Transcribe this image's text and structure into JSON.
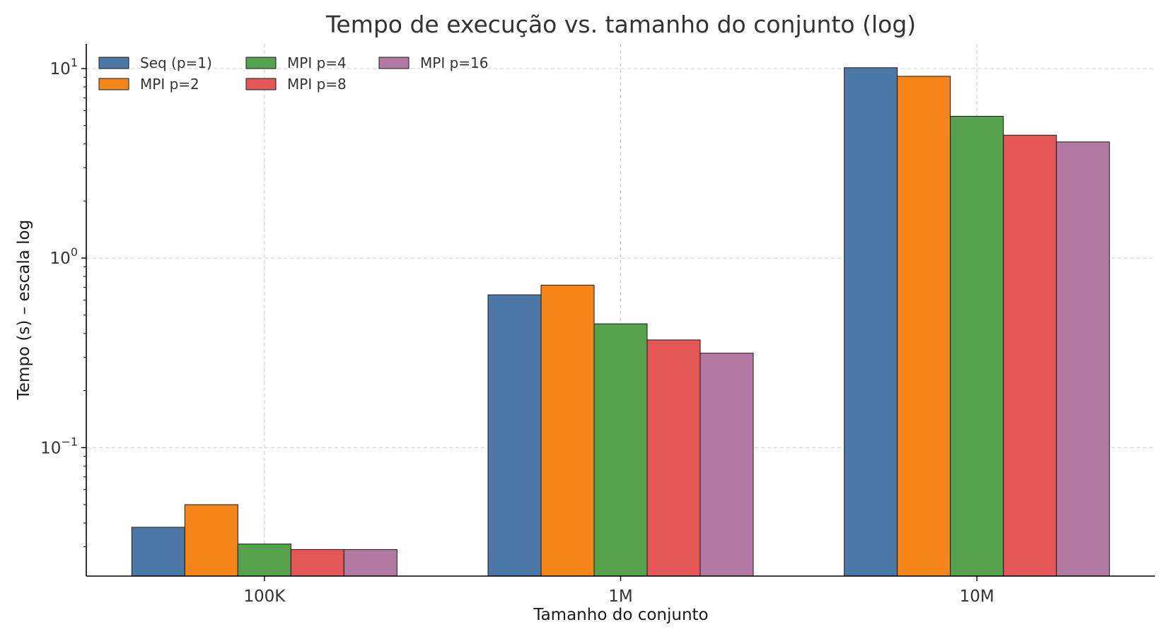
{
  "chart_data": {
    "type": "bar",
    "title": "Tempo de execução vs. tamanho do conjunto (log)",
    "xlabel": "Tamanho do conjunto",
    "ylabel": "Tempo (s) – escala log",
    "yscale": "log",
    "ylim": [
      0.021,
      13.5
    ],
    "y_ticks": [
      {
        "value": 0.1,
        "base": "10",
        "exp": "−1"
      },
      {
        "value": 1,
        "base": "10",
        "exp": "0"
      },
      {
        "value": 10,
        "base": "10",
        "exp": "1"
      }
    ],
    "categories": [
      "100K",
      "1M",
      "10M"
    ],
    "series": [
      {
        "name": "Seq (p=1)",
        "color": "#4c78a8",
        "values": [
          0.038,
          0.64,
          10.1
        ]
      },
      {
        "name": "MPI p=2",
        "color": "#f58518",
        "values": [
          0.05,
          0.72,
          9.1
        ]
      },
      {
        "name": "MPI p=4",
        "color": "#54a24b",
        "values": [
          0.031,
          0.45,
          5.6
        ]
      },
      {
        "name": "MPI p=8",
        "color": "#e45756",
        "values": [
          0.029,
          0.37,
          4.45
        ]
      },
      {
        "name": "MPI p=16",
        "color": "#b279a2",
        "values": [
          0.029,
          0.315,
          4.1
        ]
      }
    ],
    "grid": true,
    "legend_position": "top-left",
    "colors": {
      "text": "#333333",
      "grid": "#cccccc",
      "bar_edge": "#1a1a1a",
      "axis": "#000000"
    }
  }
}
